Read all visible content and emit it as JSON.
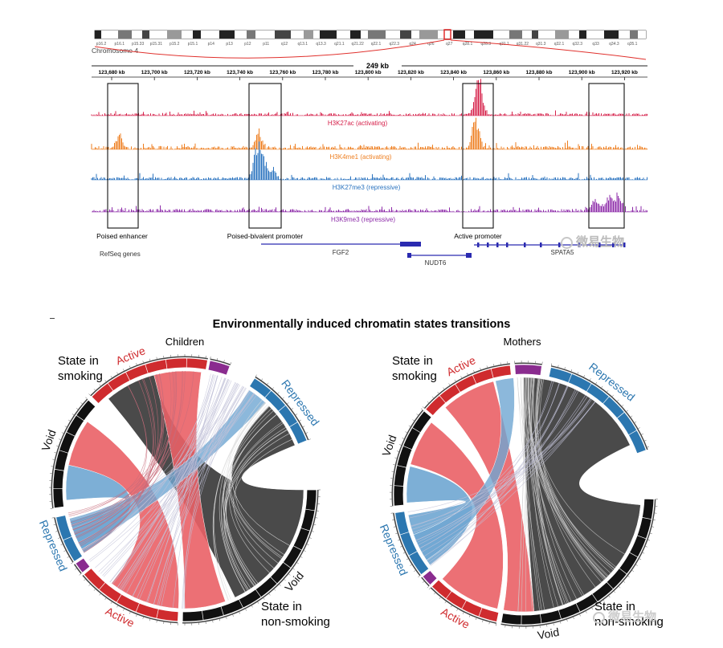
{
  "browser": {
    "chromosome_label": "Chromosome 4",
    "ideogram_bands": [
      "p16.2",
      "p16.1",
      "p15.33",
      "p15.31",
      "p15.2",
      "p15.1",
      "p14",
      "p13",
      "p12",
      "p11",
      "q12",
      "q13.1",
      "q13.3",
      "q21.1",
      "q21.22",
      "q22.1",
      "q22.3",
      "q24",
      "q26",
      "q27",
      "q28.1",
      "q28.3",
      "q31.1",
      "q31.22",
      "q31.3",
      "q32.1",
      "q32.3",
      "q33",
      "q34.3",
      "q35.1"
    ],
    "span_label": "249 kb",
    "positions": [
      "123,680 kb",
      "123,700 kb",
      "123,720 kb",
      "123,740 kb",
      "123,760 kb",
      "123,780 kb",
      "123,800 kb",
      "123,820 kb",
      "123,840 kb",
      "123,860 kb",
      "123,880 kb",
      "123,900 kb",
      "123,920 kb"
    ],
    "tracks": [
      {
        "label": "H3K27ac (activating)",
        "color": "#d6204a"
      },
      {
        "label": "H3K4me1 (activating)",
        "color": "#ee7e1f"
      },
      {
        "label": "H3K27me3 (repressive)",
        "color": "#2a73bf"
      },
      {
        "label": "H3K9me3 (repressive)",
        "color": "#8c2aa8"
      }
    ],
    "regions": [
      "Poised enhancer",
      "Poised-bivalent promoter",
      "Active promoter",
      ""
    ],
    "refseq_label": "RefSeq genes",
    "genes": [
      "FGF2",
      "NUDT6",
      "SPATA5"
    ],
    "watermark": "微易生物"
  },
  "chart_data": [
    {
      "type": "chord",
      "title": "Children",
      "segments_top": [
        "Void",
        "Active",
        "Repressed"
      ],
      "segments_bottom": [
        "Repressed",
        "Active",
        "Void"
      ],
      "top_label": "State in smoking",
      "bottom_label": "State in non-smoking"
    },
    {
      "type": "chord",
      "title": "Mothers",
      "segments_top": [
        "Void",
        "Active",
        "Repressed"
      ],
      "segments_bottom": [
        "Repressed",
        "Active",
        "Void"
      ],
      "top_label": "State in smoking",
      "bottom_label": "State in non-smoking"
    }
  ],
  "figure_title": "Environmentally induced chromatin states transitions",
  "colors": {
    "active": "#cf2b2e",
    "repressed": "#2c77b0",
    "void": "#111111",
    "chord_dark": "#4a4a4a",
    "chord_red": "#ea6166",
    "chord_blue": "#6fa6d2",
    "purple": "#8a2c8f"
  }
}
